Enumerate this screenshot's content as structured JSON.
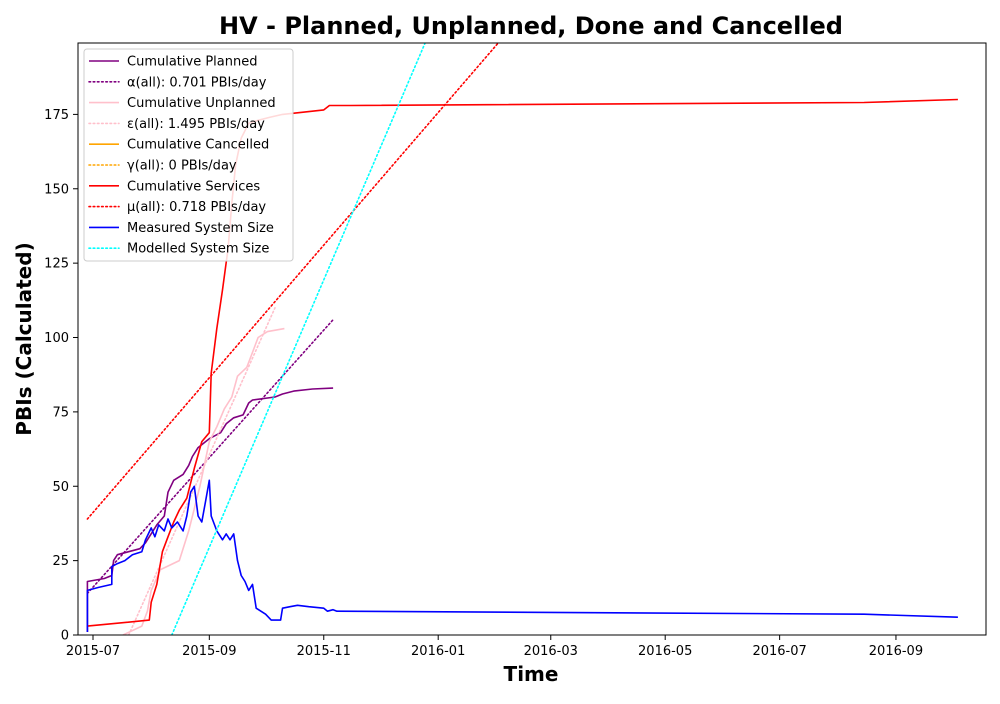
{
  "chart_data": {
    "type": "line",
    "title": "HV - Planned, Unplanned, Done  and Cancelled",
    "xlabel": "Time",
    "ylabel": "PBIs (Calculated)",
    "x_range": [
      "2015-06-23",
      "2016-10-19"
    ],
    "ylim": [
      0,
      199
    ],
    "x_ticks": [
      "2015-07",
      "2015-09",
      "2015-11",
      "2016-01",
      "2016-03",
      "2016-05",
      "2016-07",
      "2016-09"
    ],
    "y_ticks": [
      0,
      25,
      50,
      75,
      100,
      125,
      150,
      175
    ],
    "grid": false,
    "legend_position": "upper-left",
    "series": [
      {
        "name": "Cumulative Planned",
        "color": "#800080",
        "style": "solid",
        "points": [
          [
            "2015-06-28",
            1
          ],
          [
            "2015-06-28",
            18
          ],
          [
            "2015-07-07",
            19
          ],
          [
            "2015-07-11",
            20
          ],
          [
            "2015-07-12",
            25
          ],
          [
            "2015-07-14",
            27
          ],
          [
            "2015-07-26",
            29
          ],
          [
            "2015-07-29",
            31
          ],
          [
            "2015-08-02",
            35
          ],
          [
            "2015-08-04",
            37
          ],
          [
            "2015-08-08",
            40
          ],
          [
            "2015-08-10",
            48
          ],
          [
            "2015-08-13",
            52
          ],
          [
            "2015-08-18",
            54
          ],
          [
            "2015-08-21",
            57
          ],
          [
            "2015-08-23",
            60
          ],
          [
            "2015-08-26",
            63
          ],
          [
            "2015-08-30",
            65
          ],
          [
            "2015-09-01",
            66
          ],
          [
            "2015-09-07",
            68
          ],
          [
            "2015-09-10",
            71
          ],
          [
            "2015-09-14",
            73
          ],
          [
            "2015-09-19",
            74
          ],
          [
            "2015-09-22",
            78
          ],
          [
            "2015-09-24",
            79
          ],
          [
            "2015-10-06",
            80
          ],
          [
            "2015-10-10",
            81
          ],
          [
            "2015-10-16",
            82
          ],
          [
            "2015-10-26",
            82.7
          ],
          [
            "2015-11-06",
            83
          ]
        ]
      },
      {
        "name": "α(all): 0.701 PBIs/day",
        "color": "#800080",
        "style": "dotted",
        "points": [
          [
            "2015-06-28",
            14
          ],
          [
            "2015-11-06",
            106
          ]
        ]
      },
      {
        "name": "Cumulative Unplanned",
        "color": "#ffc0cb",
        "style": "solid",
        "points": [
          [
            "2015-07-17",
            0
          ],
          [
            "2015-07-27",
            3
          ],
          [
            "2015-07-30",
            8
          ],
          [
            "2015-08-01",
            15
          ],
          [
            "2015-08-06",
            22
          ],
          [
            "2015-08-16",
            25
          ],
          [
            "2015-08-21",
            35
          ],
          [
            "2015-08-27",
            50
          ],
          [
            "2015-09-01",
            65
          ],
          [
            "2015-09-05",
            70
          ],
          [
            "2015-09-09",
            76
          ],
          [
            "2015-09-13",
            80
          ],
          [
            "2015-09-16",
            87
          ],
          [
            "2015-09-21",
            90
          ],
          [
            "2015-09-24",
            95
          ],
          [
            "2015-09-27",
            100
          ],
          [
            "2015-10-02",
            102
          ],
          [
            "2015-10-11",
            103
          ]
        ]
      },
      {
        "name": "ε(all): 1.495 PBIs/day",
        "color": "#ffc0cb",
        "style": "dotted",
        "points": [
          [
            "2015-07-20",
            0
          ],
          [
            "2015-10-06",
            110
          ]
        ]
      },
      {
        "name": "Cumulative Cancelled",
        "color": "#ffa500",
        "style": "solid",
        "points": []
      },
      {
        "name": "γ(all): 0 PBIs/day",
        "color": "#ffa500",
        "style": "dotted",
        "points": []
      },
      {
        "name": "Cumulative Services",
        "color": "#ff0000",
        "style": "solid",
        "points": [
          [
            "2015-06-28",
            3
          ],
          [
            "2015-07-31",
            5
          ],
          [
            "2015-08-01",
            11
          ],
          [
            "2015-08-04",
            17
          ],
          [
            "2015-08-07",
            28
          ],
          [
            "2015-08-10",
            33
          ],
          [
            "2015-08-13",
            38
          ],
          [
            "2015-08-16",
            42
          ],
          [
            "2015-08-20",
            46
          ],
          [
            "2015-08-24",
            56
          ],
          [
            "2015-08-28",
            65
          ],
          [
            "2015-09-01",
            68
          ],
          [
            "2015-09-02",
            88
          ],
          [
            "2015-09-05",
            103
          ],
          [
            "2015-09-08",
            116
          ],
          [
            "2015-09-11",
            130
          ],
          [
            "2015-09-13",
            145
          ],
          [
            "2015-09-15",
            158
          ],
          [
            "2015-09-18",
            167
          ],
          [
            "2015-09-22",
            172
          ],
          [
            "2015-09-27",
            173
          ],
          [
            "2015-10-03",
            174
          ],
          [
            "2015-10-10",
            175
          ],
          [
            "2015-11-01",
            176.5
          ],
          [
            "2015-11-04",
            178
          ],
          [
            "2015-11-15",
            178
          ],
          [
            "2016-08-15",
            179
          ],
          [
            "2016-10-04",
            180
          ]
        ]
      },
      {
        "name": "μ(all): 0.718 PBIs/day",
        "color": "#ff0000",
        "style": "dotted",
        "points": [
          [
            "2015-06-28",
            39
          ],
          [
            "2016-02-02",
            199
          ]
        ]
      },
      {
        "name": "Measured System Size",
        "color": "#0000ff",
        "style": "solid",
        "points": [
          [
            "2015-06-28",
            1
          ],
          [
            "2015-06-28",
            15
          ],
          [
            "2015-07-04",
            16
          ],
          [
            "2015-07-11",
            17
          ],
          [
            "2015-07-11",
            23
          ],
          [
            "2015-07-14",
            24
          ],
          [
            "2015-07-18",
            25
          ],
          [
            "2015-07-22",
            27
          ],
          [
            "2015-07-27",
            28
          ],
          [
            "2015-07-29",
            32
          ],
          [
            "2015-08-01",
            36
          ],
          [
            "2015-08-03",
            33
          ],
          [
            "2015-08-05",
            37
          ],
          [
            "2015-08-08",
            35
          ],
          [
            "2015-08-10",
            39
          ],
          [
            "2015-08-12",
            36
          ],
          [
            "2015-08-15",
            38
          ],
          [
            "2015-08-18",
            35
          ],
          [
            "2015-08-20",
            40
          ],
          [
            "2015-08-22",
            48
          ],
          [
            "2015-08-24",
            50
          ],
          [
            "2015-08-26",
            40
          ],
          [
            "2015-08-28",
            38
          ],
          [
            "2015-08-30",
            45
          ],
          [
            "2015-09-01",
            52
          ],
          [
            "2015-09-02",
            40
          ],
          [
            "2015-09-05",
            35
          ],
          [
            "2015-09-08",
            32
          ],
          [
            "2015-09-10",
            34
          ],
          [
            "2015-09-12",
            32
          ],
          [
            "2015-09-14",
            34
          ],
          [
            "2015-09-16",
            25
          ],
          [
            "2015-09-18",
            20
          ],
          [
            "2015-09-20",
            18
          ],
          [
            "2015-09-22",
            15
          ],
          [
            "2015-09-24",
            17
          ],
          [
            "2015-09-26",
            9
          ],
          [
            "2015-10-01",
            7
          ],
          [
            "2015-10-04",
            5
          ],
          [
            "2015-10-09",
            5
          ],
          [
            "2015-10-10",
            9
          ],
          [
            "2015-10-14",
            9.5
          ],
          [
            "2015-10-18",
            10
          ],
          [
            "2015-10-24",
            9.5
          ],
          [
            "2015-11-01",
            9
          ],
          [
            "2015-11-03",
            8
          ],
          [
            "2015-11-06",
            8.5
          ],
          [
            "2015-11-08",
            8
          ],
          [
            "2016-08-15",
            7
          ],
          [
            "2016-10-04",
            6
          ]
        ]
      },
      {
        "name": "Modelled System Size",
        "color": "#00ffff",
        "style": "dotted",
        "points": [
          [
            "2015-08-12",
            0
          ],
          [
            "2015-12-25",
            199
          ]
        ]
      }
    ]
  }
}
